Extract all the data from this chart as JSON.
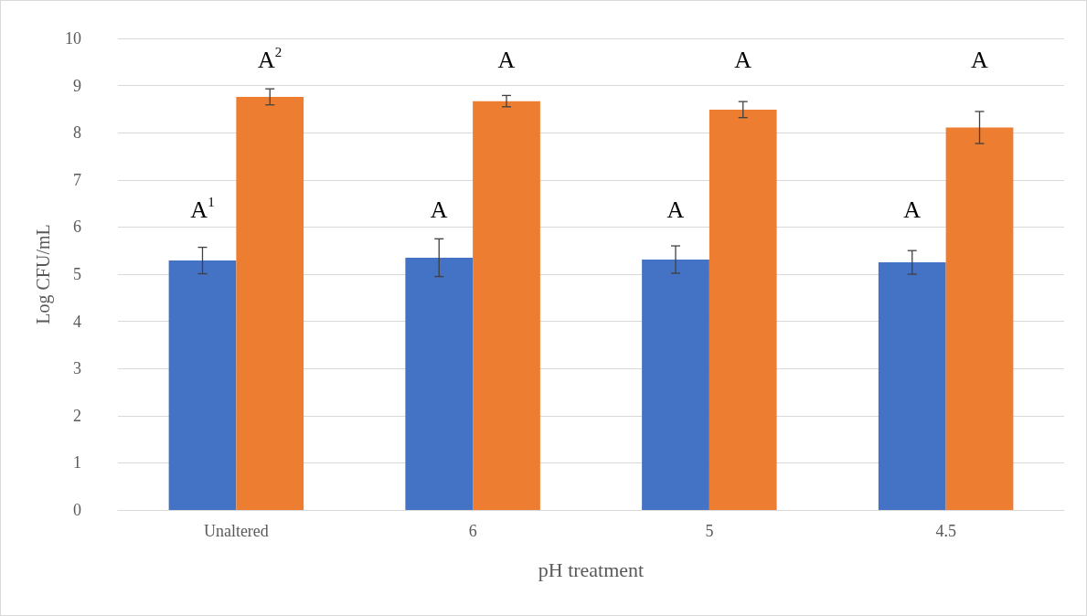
{
  "chart_data": {
    "type": "bar",
    "xlabel": "pH treatment",
    "ylabel": "Log CFU/mL",
    "categories": [
      "Unaltered",
      "6",
      "5",
      "4.5"
    ],
    "series": [
      {
        "color": "#4472c4",
        "values": [
          5.29,
          5.35,
          5.31,
          5.25
        ],
        "errors": [
          0.28,
          0.4,
          0.29,
          0.25
        ]
      },
      {
        "color": "#ed7d31",
        "values": [
          8.76,
          8.67,
          8.49,
          8.11
        ],
        "errors": [
          0.17,
          0.12,
          0.17,
          0.34
        ]
      }
    ],
    "ylim": [
      0,
      10
    ],
    "yticks": [
      0,
      1,
      2,
      3,
      4,
      5,
      6,
      7,
      8,
      9,
      10
    ],
    "grid": "y",
    "annotations": [
      {
        "text": "A$^{1}$",
        "x": "Unaltered",
        "y": 5.29
      },
      {
        "text": "A$^{2}$",
        "x": "Unaltered",
        "y": 8.76
      },
      {
        "text": "A",
        "x": "6",
        "y": 5.35
      },
      {
        "text": "A",
        "x": "6",
        "y": 8.67
      },
      {
        "text": "A",
        "x": "5",
        "y": 5.31
      },
      {
        "text": "A",
        "x": "5",
        "y": 8.49
      },
      {
        "text": "A",
        "x": "4.5",
        "y": 5.25
      },
      {
        "text": "A",
        "x": "4.5",
        "y": 8.11
      }
    ]
  }
}
